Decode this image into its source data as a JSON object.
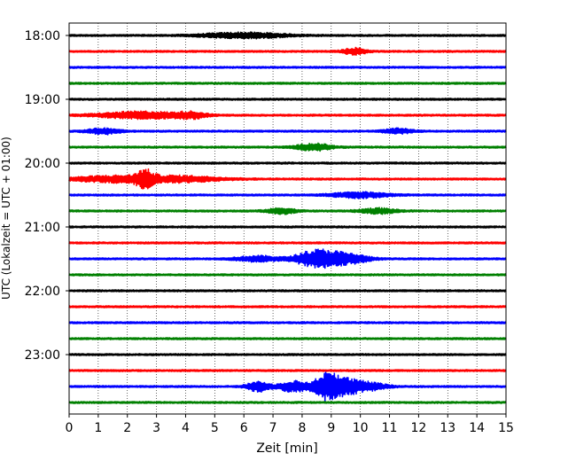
{
  "chart_data": {
    "type": "line",
    "title": "",
    "xlabel": "Zeit  [min]",
    "ylabel": "UTC (Lokalzeit = UTC + 01:00)",
    "xlim": [
      0,
      15
    ],
    "x_ticks": [
      0,
      1,
      2,
      3,
      4,
      5,
      6,
      7,
      8,
      9,
      10,
      11,
      12,
      13,
      14,
      15
    ],
    "y_tick_labels": [
      "18:00",
      "19:00",
      "20:00",
      "21:00",
      "22:00",
      "23:00"
    ],
    "grid": "vertical dotted lines at each minute",
    "trace_colors": [
      "#000000",
      "#ff0000",
      "#0000ff",
      "#008000"
    ],
    "traces": [
      {
        "start": "18:00",
        "color": "#000000",
        "amplitude": 0.35,
        "events": [
          {
            "t": 6.0,
            "amp": 1.0,
            "width": 1.5
          }
        ]
      },
      {
        "start": "18:15",
        "color": "#ff0000",
        "amplitude": 0.35,
        "events": [
          {
            "t": 9.8,
            "amp": 1.2,
            "width": 0.4
          }
        ]
      },
      {
        "start": "18:30",
        "color": "#0000ff",
        "amplitude": 0.35,
        "events": []
      },
      {
        "start": "18:45",
        "color": "#008000",
        "amplitude": 0.35,
        "events": []
      },
      {
        "start": "19:00",
        "color": "#000000",
        "amplitude": 0.35,
        "events": []
      },
      {
        "start": "19:15",
        "color": "#ff0000",
        "amplitude": 0.35,
        "events": [
          {
            "t": 2.5,
            "amp": 1.3,
            "width": 1.5
          },
          {
            "t": 4.2,
            "amp": 1.0,
            "width": 0.5
          }
        ]
      },
      {
        "start": "19:30",
        "color": "#0000ff",
        "amplitude": 0.35,
        "events": [
          {
            "t": 1.2,
            "amp": 1.0,
            "width": 0.6
          },
          {
            "t": 11.3,
            "amp": 0.9,
            "width": 0.5
          }
        ]
      },
      {
        "start": "19:45",
        "color": "#008000",
        "amplitude": 0.35,
        "events": [
          {
            "t": 8.4,
            "amp": 1.3,
            "width": 0.6
          }
        ]
      },
      {
        "start": "20:00",
        "color": "#000000",
        "amplitude": 0.35,
        "events": []
      },
      {
        "start": "20:15",
        "color": "#ff0000",
        "amplitude": 0.35,
        "events": [
          {
            "t": 2.6,
            "amp": 2.6,
            "width": 0.3
          },
          {
            "t": 1.5,
            "amp": 1.1,
            "width": 1.5
          },
          {
            "t": 3.8,
            "amp": 1.1,
            "width": 1.5
          }
        ]
      },
      {
        "start": "20:30",
        "color": "#0000ff",
        "amplitude": 0.35,
        "events": [
          {
            "t": 10.0,
            "amp": 1.0,
            "width": 1.0
          }
        ]
      },
      {
        "start": "20:45",
        "color": "#008000",
        "amplitude": 0.35,
        "events": [
          {
            "t": 7.3,
            "amp": 1.0,
            "width": 0.5
          },
          {
            "t": 10.6,
            "amp": 1.0,
            "width": 0.6
          }
        ]
      },
      {
        "start": "21:00",
        "color": "#000000",
        "amplitude": 0.35,
        "events": []
      },
      {
        "start": "21:15",
        "color": "#ff0000",
        "amplitude": 0.35,
        "events": []
      },
      {
        "start": "21:30",
        "color": "#0000ff",
        "amplitude": 0.35,
        "events": [
          {
            "t": 6.5,
            "amp": 1.0,
            "width": 0.8
          },
          {
            "t": 8.3,
            "amp": 2.5,
            "width": 0.6
          },
          {
            "t": 9.0,
            "amp": 2.3,
            "width": 0.6
          },
          {
            "t": 9.8,
            "amp": 1.3,
            "width": 0.6
          }
        ]
      },
      {
        "start": "21:45",
        "color": "#008000",
        "amplitude": 0.35,
        "events": []
      },
      {
        "start": "22:00",
        "color": "#000000",
        "amplitude": 0.35,
        "events": []
      },
      {
        "start": "22:15",
        "color": "#ff0000",
        "amplitude": 0.35,
        "events": []
      },
      {
        "start": "22:30",
        "color": "#0000ff",
        "amplitude": 0.35,
        "events": []
      },
      {
        "start": "22:45",
        "color": "#008000",
        "amplitude": 0.35,
        "events": []
      },
      {
        "start": "23:00",
        "color": "#000000",
        "amplitude": 0.35,
        "events": []
      },
      {
        "start": "23:15",
        "color": "#ff0000",
        "amplitude": 0.35,
        "events": []
      },
      {
        "start": "23:30",
        "color": "#0000ff",
        "amplitude": 0.35,
        "events": [
          {
            "t": 6.5,
            "amp": 1.8,
            "width": 0.4
          },
          {
            "t": 7.7,
            "amp": 2.0,
            "width": 0.5
          },
          {
            "t": 8.9,
            "amp": 5.0,
            "width": 0.5
          },
          {
            "t": 9.6,
            "amp": 2.2,
            "width": 0.6
          },
          {
            "t": 10.4,
            "amp": 1.1,
            "width": 0.6
          }
        ]
      },
      {
        "start": "23:45",
        "color": "#008000",
        "amplitude": 0.35,
        "events": []
      }
    ]
  }
}
